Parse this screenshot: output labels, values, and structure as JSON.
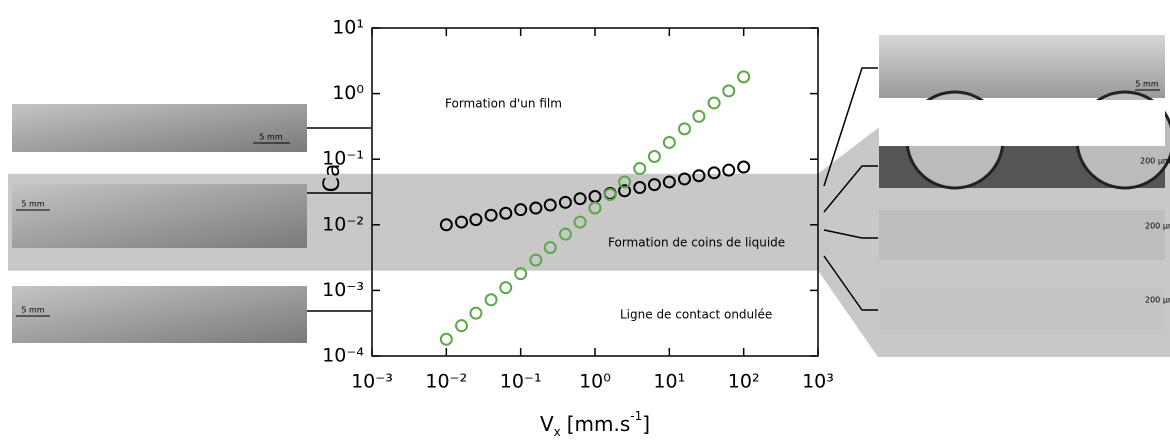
{
  "chart_data": {
    "type": "scatter",
    "ylabel": "Ca",
    "xlabel": {
      "main": "V",
      "sub": "x",
      "unit": "[mm.s",
      "sup": "-1",
      "end": "]"
    },
    "annotations": [
      "Formation d'un film",
      "Formation de coins de liquide",
      "Ligne de contact ondulée"
    ],
    "x": [
      0.01,
      0.016,
      0.025,
      0.04,
      0.063,
      0.1,
      0.16,
      0.25,
      0.4,
      0.63,
      1,
      1.6,
      2.5,
      4,
      6.3,
      10,
      16,
      25,
      40,
      63,
      100
    ],
    "series": [
      {
        "color": "#000000",
        "values": [
          0.01,
          0.011,
          0.012,
          0.014,
          0.015,
          0.017,
          0.018,
          0.02,
          0.022,
          0.025,
          0.027,
          0.03,
          0.033,
          0.037,
          0.041,
          0.045,
          0.05,
          0.056,
          0.062,
          0.068,
          0.076
        ]
      },
      {
        "color": "#5aa84a",
        "values": [
          0.00018,
          0.00029,
          0.00045,
          0.00072,
          0.0011,
          0.0018,
          0.0029,
          0.0045,
          0.0072,
          0.011,
          0.018,
          0.029,
          0.045,
          0.072,
          0.11,
          0.18,
          0.29,
          0.45,
          0.72,
          1.1,
          1.8
        ]
      }
    ],
    "xscale": "log",
    "yscale": "log",
    "xlim": [
      0.001,
      1000
    ],
    "ylim": [
      0.0001,
      10
    ],
    "xticks": [
      {
        "value": 0.001,
        "label": "10⁻³"
      },
      {
        "value": 0.01,
        "label": "10⁻²"
      },
      {
        "value": 0.1,
        "label": "10⁻¹"
      },
      {
        "value": 1,
        "label": "10⁰"
      },
      {
        "value": 10,
        "label": "10¹"
      },
      {
        "value": 100,
        "label": "10²"
      },
      {
        "value": 1000,
        "label": "10³"
      }
    ],
    "yticks": [
      {
        "value": 0.0001,
        "label": "10⁻⁴"
      },
      {
        "value": 0.001,
        "label": "10⁻³"
      },
      {
        "value": 0.01,
        "label": "10⁻²"
      },
      {
        "value": 0.1,
        "label": "10⁻¹"
      },
      {
        "value": 1,
        "label": "10⁰"
      },
      {
        "value": 10,
        "label": "10¹"
      }
    ],
    "band_ylim": [
      0.002,
      0.06
    ],
    "band_color": "#c8c8c8"
  },
  "panels": {
    "left": [
      "5 mm",
      "5 mm",
      "5 mm"
    ],
    "right": [
      "5 mm",
      "200 µm",
      "200 µm",
      "200 µm"
    ]
  }
}
